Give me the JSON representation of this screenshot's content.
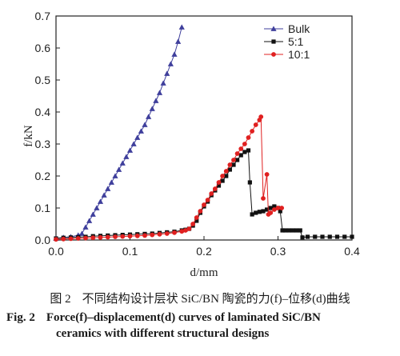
{
  "chart_data": {
    "type": "line",
    "xlabel": "d/mm",
    "ylabel": "f/kN",
    "xlim": [
      0.0,
      0.4
    ],
    "ylim": [
      0.0,
      0.7
    ],
    "xticks": [
      "0.0",
      "0.1",
      "0.2",
      "0.3",
      "0.4"
    ],
    "yticks": [
      "0.0",
      "0.1",
      "0.2",
      "0.3",
      "0.4",
      "0.5",
      "0.6",
      "0.7"
    ],
    "legend_position": "top-right",
    "series": [
      {
        "name": "Bulk",
        "color": "#3f3f9c",
        "marker": "triangle",
        "x": [
          0.0,
          0.01,
          0.02,
          0.03,
          0.035,
          0.04,
          0.045,
          0.05,
          0.055,
          0.06,
          0.065,
          0.07,
          0.075,
          0.08,
          0.085,
          0.09,
          0.095,
          0.1,
          0.105,
          0.11,
          0.115,
          0.12,
          0.125,
          0.13,
          0.135,
          0.14,
          0.145,
          0.15,
          0.155,
          0.16,
          0.165,
          0.17
        ],
        "y": [
          0.005,
          0.008,
          0.01,
          0.015,
          0.02,
          0.04,
          0.06,
          0.08,
          0.1,
          0.12,
          0.14,
          0.16,
          0.18,
          0.2,
          0.22,
          0.24,
          0.26,
          0.28,
          0.3,
          0.32,
          0.34,
          0.36,
          0.385,
          0.41,
          0.435,
          0.46,
          0.49,
          0.52,
          0.55,
          0.58,
          0.62,
          0.665
        ]
      },
      {
        "name": "5:1",
        "color": "#111111",
        "marker": "square",
        "x": [
          0.0,
          0.01,
          0.02,
          0.03,
          0.04,
          0.05,
          0.06,
          0.07,
          0.08,
          0.09,
          0.1,
          0.11,
          0.12,
          0.13,
          0.14,
          0.15,
          0.16,
          0.17,
          0.175,
          0.18,
          0.185,
          0.19,
          0.195,
          0.2,
          0.205,
          0.21,
          0.215,
          0.22,
          0.225,
          0.23,
          0.235,
          0.24,
          0.245,
          0.25,
          0.255,
          0.26,
          0.262,
          0.265,
          0.27,
          0.275,
          0.28,
          0.285,
          0.29,
          0.295,
          0.3,
          0.303,
          0.306,
          0.31,
          0.315,
          0.32,
          0.325,
          0.33,
          0.333,
          0.34,
          0.35,
          0.36,
          0.37,
          0.38,
          0.39,
          0.4
        ],
        "y": [
          0.005,
          0.007,
          0.008,
          0.009,
          0.01,
          0.012,
          0.013,
          0.014,
          0.015,
          0.016,
          0.017,
          0.018,
          0.019,
          0.02,
          0.022,
          0.024,
          0.026,
          0.03,
          0.032,
          0.035,
          0.045,
          0.06,
          0.085,
          0.105,
          0.12,
          0.14,
          0.155,
          0.17,
          0.185,
          0.2,
          0.22,
          0.235,
          0.25,
          0.265,
          0.275,
          0.28,
          0.18,
          0.08,
          0.085,
          0.088,
          0.09,
          0.095,
          0.1,
          0.105,
          0.1,
          0.09,
          0.03,
          0.03,
          0.03,
          0.03,
          0.03,
          0.03,
          0.008,
          0.01,
          0.01,
          0.01,
          0.01,
          0.01,
          0.01,
          0.01
        ]
      },
      {
        "name": "10:1",
        "color": "#e02020",
        "marker": "circle",
        "x": [
          0.0,
          0.01,
          0.02,
          0.03,
          0.04,
          0.05,
          0.06,
          0.07,
          0.08,
          0.09,
          0.1,
          0.11,
          0.12,
          0.13,
          0.14,
          0.15,
          0.16,
          0.17,
          0.175,
          0.18,
          0.185,
          0.19,
          0.195,
          0.2,
          0.205,
          0.21,
          0.215,
          0.22,
          0.225,
          0.23,
          0.235,
          0.24,
          0.245,
          0.25,
          0.255,
          0.26,
          0.265,
          0.27,
          0.275,
          0.277,
          0.28,
          0.285,
          0.287,
          0.29,
          0.295,
          0.3,
          0.305
        ],
        "y": [
          0.002,
          0.003,
          0.004,
          0.005,
          0.006,
          0.007,
          0.008,
          0.009,
          0.01,
          0.011,
          0.012,
          0.013,
          0.014,
          0.016,
          0.018,
          0.02,
          0.023,
          0.027,
          0.03,
          0.035,
          0.05,
          0.07,
          0.09,
          0.11,
          0.125,
          0.145,
          0.16,
          0.18,
          0.2,
          0.215,
          0.235,
          0.25,
          0.27,
          0.285,
          0.3,
          0.32,
          0.34,
          0.36,
          0.375,
          0.385,
          0.13,
          0.205,
          0.08,
          0.085,
          0.095,
          0.1,
          0.1
        ]
      }
    ]
  },
  "caption": {
    "cn_tag": "图 2",
    "cn_text": "不同结构设计层状 SiC/BN 陶瓷的力(f)–位移(d)曲线",
    "en_tag": "Fig. 2",
    "en_line1": "Force(f)–displacement(d) curves of laminated SiC/BN",
    "en_line2": "ceramics with different structural designs"
  }
}
